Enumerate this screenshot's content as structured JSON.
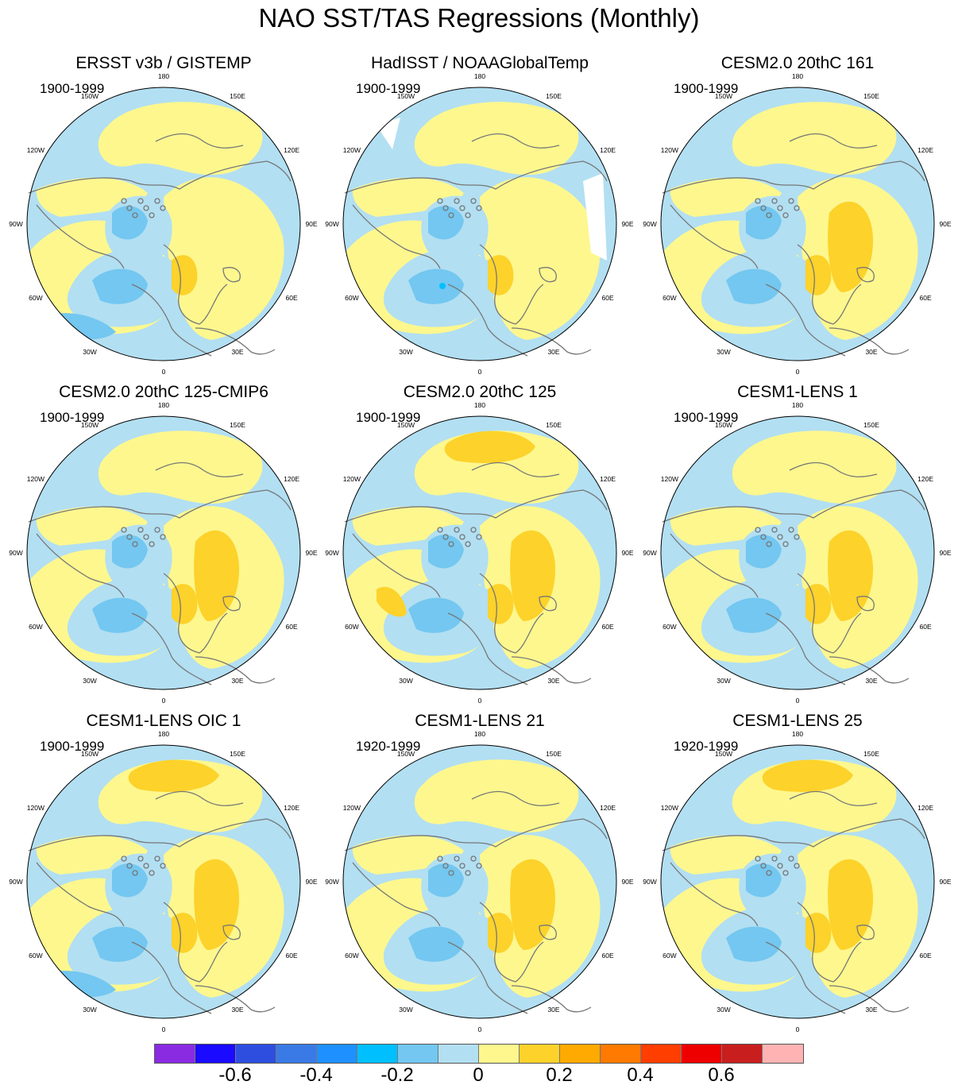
{
  "title": "NAO SST/TAS Regressions (Monthly)",
  "panels": [
    {
      "title": "ERSST v3b / GISTEMP",
      "period": "1900-1999",
      "variant": 0
    },
    {
      "title": "HadISST / NOAAGlobalTemp",
      "period": "1900-1999",
      "variant": 1
    },
    {
      "title": "CESM2.0 20thC 161",
      "period": "1900-1999",
      "variant": 2
    },
    {
      "title": "CESM2.0 20thC 125-CMIP6",
      "period": "1900-1999",
      "variant": 3
    },
    {
      "title": "CESM2.0 20thC 125",
      "period": "1900-1999",
      "variant": 4
    },
    {
      "title": "CESM1-LENS 1",
      "period": "1900-1999",
      "variant": 5
    },
    {
      "title": "CESM1-LENS OIC 1",
      "period": "1900-1999",
      "variant": 6
    },
    {
      "title": "CESM1-LENS 21",
      "period": "1920-1999",
      "variant": 7
    },
    {
      "title": "CESM1-LENS 25",
      "period": "1920-1999",
      "variant": 8
    }
  ],
  "longitude_labels": [
    "180",
    "150E",
    "120E",
    "90E",
    "60E",
    "30E",
    "0",
    "30W",
    "60W",
    "90W",
    "120W",
    "150W"
  ],
  "colorbar": {
    "colors": [
      "#8a2be2",
      "#1a0aff",
      "#2e4ee0",
      "#3a7ae6",
      "#1e90ff",
      "#00bfff",
      "#73c7f0",
      "#b2dff2",
      "#fdf78e",
      "#fdd22a",
      "#ffaa00",
      "#ff7a00",
      "#ff3e00",
      "#ee0000",
      "#c81e1e",
      "#ffb3b3"
    ],
    "labels": [
      "-0.6",
      "-0.4",
      "-0.2",
      "0",
      "0.2",
      "0.4",
      "0.6"
    ],
    "label_values": [
      -0.6,
      -0.4,
      -0.2,
      0,
      0.2,
      0.4,
      0.6
    ]
  },
  "map_colors": {
    "pos_light": "#fdf78e",
    "pos_mid": "#fdd22a",
    "pos_strong": "#ffaa00",
    "neg_light": "#b2dff2",
    "neg_mid": "#73c7f0",
    "neg_strong": "#3aa0ea",
    "land_line": "#777777"
  }
}
